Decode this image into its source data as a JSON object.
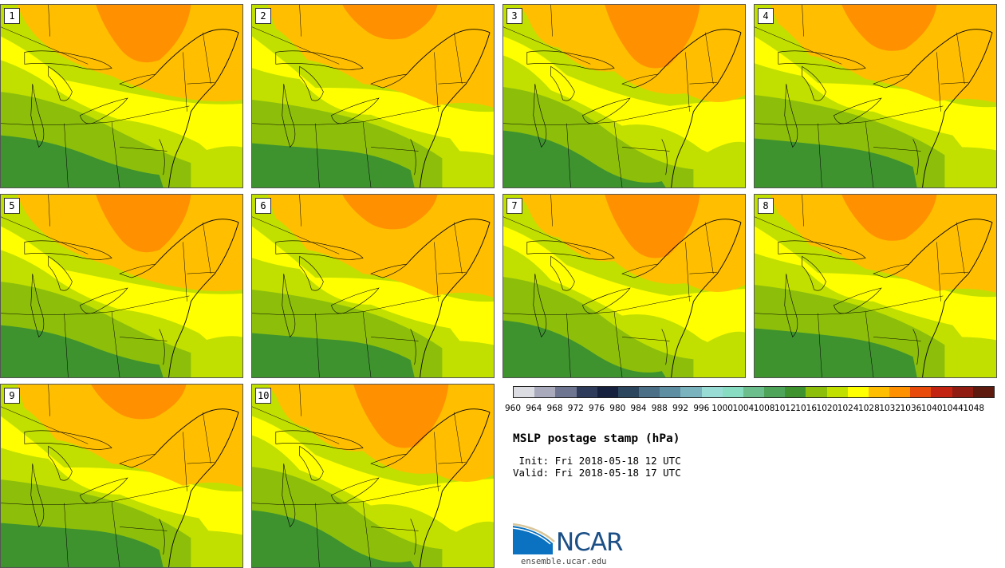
{
  "panels": [
    {
      "number": "1",
      "variant": 0
    },
    {
      "number": "2",
      "variant": 1
    },
    {
      "number": "3",
      "variant": 2
    },
    {
      "number": "4",
      "variant": 3
    },
    {
      "number": "5",
      "variant": 0
    },
    {
      "number": "6",
      "variant": 1
    },
    {
      "number": "7",
      "variant": 2
    },
    {
      "number": "8",
      "variant": 3
    },
    {
      "number": "9",
      "variant": 1
    },
    {
      "number": "10",
      "variant": 2
    }
  ],
  "legend": {
    "levels": [
      "960",
      "964",
      "968",
      "972",
      "976",
      "980",
      "984",
      "988",
      "992",
      "996",
      "1000",
      "1004",
      "1008",
      "1012",
      "1016",
      "1020",
      "1024",
      "1028",
      "1032",
      "1036",
      "1040",
      "1044",
      "1048"
    ],
    "colors": [
      "#dcdde3",
      "#a9abbd",
      "#6d7590",
      "#2f3b5a",
      "#16213f",
      "#2c4660",
      "#4a6f86",
      "#5e8ea2",
      "#7ab3bd",
      "#98dcd5",
      "#88dcc1",
      "#6cbe8c",
      "#4ea55a",
      "#3e932f",
      "#8dbf0a",
      "#c2e000",
      "#ffff00",
      "#ffbe00",
      "#ff9100",
      "#e84a0c",
      "#c32411",
      "#901c12",
      "#5e1a0f"
    ]
  },
  "title": "MSLP postage stamp (hPa)",
  "init_text": " Init: Fri 2018-05-18 12 UTC",
  "valid_text": "Valid: Fri 2018-05-18 17 UTC",
  "logo_text": "NCAR",
  "site_text": "ensemble.ucar.edu",
  "map_colors": {
    "p1012": "#3e932f",
    "p1016": "#8dbf0a",
    "p1020": "#c2e000",
    "p1024": "#ffff00",
    "p1028": "#ffbe00",
    "p1032": "#ff9100",
    "boundary": "#000000"
  }
}
